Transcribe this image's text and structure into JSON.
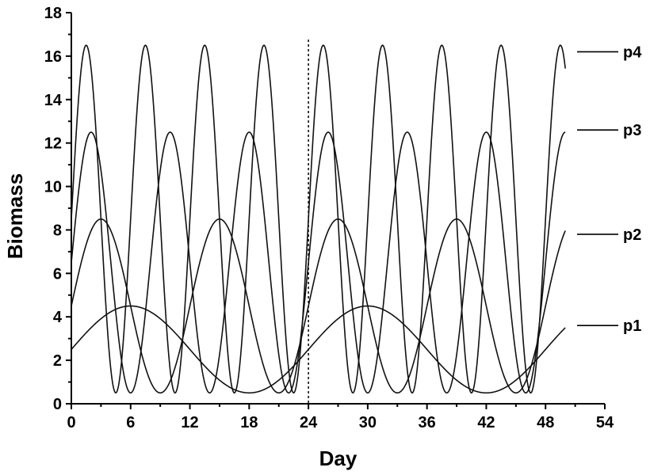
{
  "chart_data": {
    "type": "line",
    "title": "",
    "xlabel": "Day",
    "ylabel": "Biomass",
    "xlim": [
      0,
      54
    ],
    "ylim": [
      0,
      18
    ],
    "xticks": [
      0,
      6,
      12,
      18,
      24,
      30,
      36,
      42,
      48,
      54
    ],
    "yticks": [
      0,
      2,
      4,
      6,
      8,
      10,
      12,
      14,
      16,
      18
    ],
    "grid": false,
    "x_range_of_data": [
      0,
      50
    ],
    "vertical_marker_x": 24,
    "series": [
      {
        "name": "p1",
        "mean": 2.5,
        "amplitude": 2.0,
        "period": 24,
        "phase_day_of_peak": 6,
        "min": 0.5,
        "max": 4.5
      },
      {
        "name": "p2",
        "mean": 4.5,
        "amplitude": 4.0,
        "period": 12,
        "phase_day_of_peak": 3,
        "min": 0.5,
        "max": 8.5
      },
      {
        "name": "p3",
        "mean": 6.5,
        "amplitude": 6.0,
        "period": 8,
        "phase_day_of_peak": 2,
        "min": 0.5,
        "max": 12.5
      },
      {
        "name": "p4",
        "mean": 8.5,
        "amplitude": 8.0,
        "period": 6,
        "phase_day_of_peak": 1.5,
        "min": 0.5,
        "max": 16.5
      }
    ],
    "series_labels": [
      {
        "name": "p4",
        "anchor_y": 16.2
      },
      {
        "name": "p3",
        "anchor_y": 12.6
      },
      {
        "name": "p2",
        "anchor_y": 7.8
      },
      {
        "name": "p1",
        "anchor_y": 3.6
      }
    ]
  }
}
